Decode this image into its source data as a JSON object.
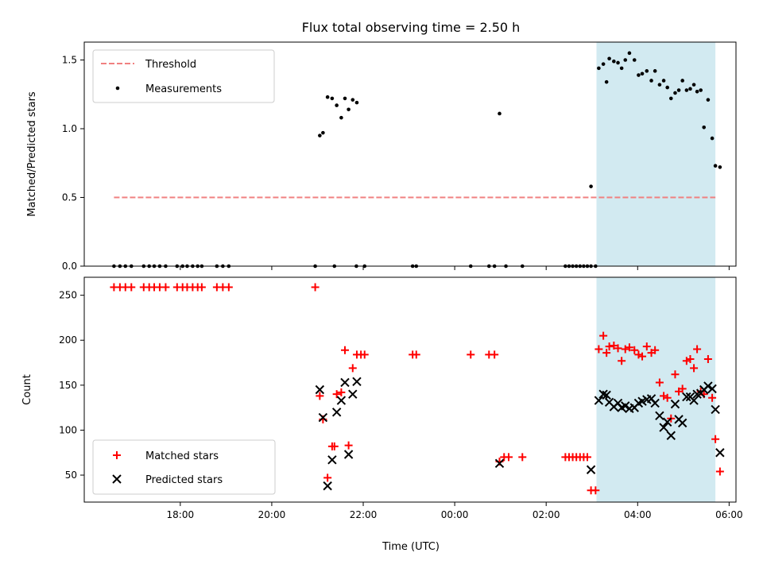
{
  "chart_data": {
    "title": "Flux total observing time = 2.50 h",
    "xlabel": "Time (UTC)",
    "xticks": [
      {
        "value": 18,
        "label": "18:00"
      },
      {
        "value": 20,
        "label": "20:00"
      },
      {
        "value": 22,
        "label": "22:00"
      },
      {
        "value": 24,
        "label": "00:00"
      },
      {
        "value": 26,
        "label": "02:00"
      },
      {
        "value": 28,
        "label": "04:00"
      },
      {
        "value": 30,
        "label": "06:00"
      }
    ],
    "x_unit_note": "",
    "shaded_region": {
      "x0": 27.1,
      "x1": 29.7,
      "color": "#add8e6"
    },
    "top": {
      "type": "scatter",
      "ylabel": "Matched/Predicted stars",
      "ylim": [
        0,
        1.63
      ],
      "yticks": [
        {
          "value": 0,
          "label": "0.0"
        },
        {
          "value": 0.5,
          "label": "0.5"
        },
        {
          "value": 1.0,
          "label": "1.0"
        },
        {
          "value": 1.5,
          "label": "1.5"
        }
      ],
      "threshold": {
        "name": "Threshold",
        "y": 0.5,
        "x0": 16.55,
        "x1": 29.7,
        "color": "#f08080"
      },
      "measurements": {
        "name": "Measurements",
        "color": "#000000",
        "points": [
          [
            16.55,
            0
          ],
          [
            16.68,
            0
          ],
          [
            16.8,
            0
          ],
          [
            16.93,
            0
          ],
          [
            17.2,
            0
          ],
          [
            17.32,
            0
          ],
          [
            17.43,
            0
          ],
          [
            17.55,
            0
          ],
          [
            17.68,
            0
          ],
          [
            17.93,
            0
          ],
          [
            18.05,
            0
          ],
          [
            18.15,
            0
          ],
          [
            18.27,
            0
          ],
          [
            18.38,
            0
          ],
          [
            18.47,
            0
          ],
          [
            18.8,
            0
          ],
          [
            18.93,
            0
          ],
          [
            19.06,
            0
          ],
          [
            20.95,
            0
          ],
          [
            21.37,
            0
          ],
          [
            21.85,
            0
          ],
          [
            22.03,
            0
          ],
          [
            23.08,
            0
          ],
          [
            23.16,
            0
          ],
          [
            24.35,
            0
          ],
          [
            24.75,
            0
          ],
          [
            24.87,
            0
          ],
          [
            25.12,
            0
          ],
          [
            25.48,
            0
          ],
          [
            26.42,
            0
          ],
          [
            26.5,
            0
          ],
          [
            26.58,
            0
          ],
          [
            26.66,
            0
          ],
          [
            26.74,
            0
          ],
          [
            26.82,
            0
          ],
          [
            26.9,
            0
          ],
          [
            26.98,
            0
          ],
          [
            27.08,
            0
          ],
          [
            21.05,
            0.95
          ],
          [
            21.12,
            0.97
          ],
          [
            21.22,
            1.23
          ],
          [
            21.32,
            1.22
          ],
          [
            21.42,
            1.17
          ],
          [
            21.52,
            1.08
          ],
          [
            21.6,
            1.22
          ],
          [
            21.68,
            1.14
          ],
          [
            21.77,
            1.21
          ],
          [
            21.86,
            1.19
          ],
          [
            24.98,
            1.11
          ],
          [
            26.98,
            0.58
          ],
          [
            27.15,
            1.44
          ],
          [
            27.25,
            1.47
          ],
          [
            27.32,
            1.34
          ],
          [
            27.38,
            1.51
          ],
          [
            27.48,
            1.49
          ],
          [
            27.57,
            1.48
          ],
          [
            27.65,
            1.44
          ],
          [
            27.73,
            1.5
          ],
          [
            27.82,
            1.55
          ],
          [
            27.93,
            1.5
          ],
          [
            28.02,
            1.39
          ],
          [
            28.1,
            1.4
          ],
          [
            28.2,
            1.42
          ],
          [
            28.3,
            1.35
          ],
          [
            28.38,
            1.42
          ],
          [
            28.48,
            1.32
          ],
          [
            28.57,
            1.35
          ],
          [
            28.65,
            1.3
          ],
          [
            28.73,
            1.22
          ],
          [
            28.82,
            1.26
          ],
          [
            28.9,
            1.28
          ],
          [
            28.98,
            1.35
          ],
          [
            29.07,
            1.28
          ],
          [
            29.15,
            1.29
          ],
          [
            29.23,
            1.32
          ],
          [
            29.3,
            1.27
          ],
          [
            29.38,
            1.28
          ],
          [
            29.45,
            1.01
          ],
          [
            29.54,
            1.21
          ],
          [
            29.63,
            0.93
          ],
          [
            29.7,
            0.73
          ],
          [
            29.8,
            0.72
          ]
        ]
      },
      "legend": [
        "Threshold",
        "Measurements"
      ]
    },
    "bottom": {
      "type": "scatter",
      "ylabel": "Count",
      "ylim": [
        20,
        270
      ],
      "yticks": [
        {
          "value": 50,
          "label": "50"
        },
        {
          "value": 100,
          "label": "100"
        },
        {
          "value": 150,
          "label": "150"
        },
        {
          "value": 200,
          "label": "200"
        },
        {
          "value": 250,
          "label": "250"
        }
      ],
      "series": [
        {
          "name": "Matched stars",
          "marker": "+",
          "color": "#ff0000",
          "points": [
            [
              16.55,
              259
            ],
            [
              16.68,
              259
            ],
            [
              16.8,
              259
            ],
            [
              16.93,
              259
            ],
            [
              17.2,
              259
            ],
            [
              17.32,
              259
            ],
            [
              17.43,
              259
            ],
            [
              17.55,
              259
            ],
            [
              17.68,
              259
            ],
            [
              17.93,
              259
            ],
            [
              18.05,
              259
            ],
            [
              18.15,
              259
            ],
            [
              18.27,
              259
            ],
            [
              18.38,
              259
            ],
            [
              18.47,
              259
            ],
            [
              18.8,
              259
            ],
            [
              18.93,
              259
            ],
            [
              19.06,
              259
            ],
            [
              20.95,
              259
            ],
            [
              21.05,
              138
            ],
            [
              21.12,
              112
            ],
            [
              21.22,
              47
            ],
            [
              21.32,
              82
            ],
            [
              21.37,
              82
            ],
            [
              21.42,
              140
            ],
            [
              21.52,
              142
            ],
            [
              21.6,
              189
            ],
            [
              21.68,
              83
            ],
            [
              21.77,
              169
            ],
            [
              21.86,
              184
            ],
            [
              21.95,
              184
            ],
            [
              22.03,
              184
            ],
            [
              23.08,
              184
            ],
            [
              23.16,
              184
            ],
            [
              24.35,
              184
            ],
            [
              24.75,
              184
            ],
            [
              24.87,
              184
            ],
            [
              24.98,
              65
            ],
            [
              25.08,
              70
            ],
            [
              25.18,
              70
            ],
            [
              25.48,
              70
            ],
            [
              26.42,
              70
            ],
            [
              26.5,
              70
            ],
            [
              26.58,
              70
            ],
            [
              26.66,
              70
            ],
            [
              26.74,
              70
            ],
            [
              26.82,
              70
            ],
            [
              26.9,
              70
            ],
            [
              26.98,
              33
            ],
            [
              27.08,
              33
            ],
            [
              27.15,
              190
            ],
            [
              27.25,
              205
            ],
            [
              27.32,
              186
            ],
            [
              27.38,
              193
            ],
            [
              27.48,
              194
            ],
            [
              27.57,
              191
            ],
            [
              27.65,
              177
            ],
            [
              27.73,
              190
            ],
            [
              27.82,
              192
            ],
            [
              27.93,
              189
            ],
            [
              28.02,
              184
            ],
            [
              28.1,
              182
            ],
            [
              28.2,
              193
            ],
            [
              28.3,
              186
            ],
            [
              28.38,
              189
            ],
            [
              28.48,
              153
            ],
            [
              28.57,
              138
            ],
            [
              28.65,
              136
            ],
            [
              28.73,
              113
            ],
            [
              28.82,
              162
            ],
            [
              28.9,
              143
            ],
            [
              28.98,
              146
            ],
            [
              29.07,
              177
            ],
            [
              29.15,
              179
            ],
            [
              29.23,
              169
            ],
            [
              29.3,
              190
            ],
            [
              29.38,
              143
            ],
            [
              29.45,
              140
            ],
            [
              29.54,
              179
            ],
            [
              29.63,
              136
            ],
            [
              29.7,
              90
            ],
            [
              29.8,
              54
            ]
          ]
        },
        {
          "name": "Predicted stars",
          "marker": "x",
          "color": "#000000",
          "points": [
            [
              21.05,
              145
            ],
            [
              21.12,
              114
            ],
            [
              21.22,
              38
            ],
            [
              21.32,
              67
            ],
            [
              21.42,
              120
            ],
            [
              21.52,
              133
            ],
            [
              21.6,
              153
            ],
            [
              21.68,
              73
            ],
            [
              21.77,
              140
            ],
            [
              21.86,
              154
            ],
            [
              24.98,
              63
            ],
            [
              26.98,
              56
            ],
            [
              27.15,
              133
            ],
            [
              27.25,
              140
            ],
            [
              27.32,
              139
            ],
            [
              27.38,
              131
            ],
            [
              27.48,
              126
            ],
            [
              27.57,
              130
            ],
            [
              27.65,
              125
            ],
            [
              27.73,
              127
            ],
            [
              27.82,
              124
            ],
            [
              27.93,
              125
            ],
            [
              28.02,
              130
            ],
            [
              28.1,
              132
            ],
            [
              28.2,
              134
            ],
            [
              28.3,
              135
            ],
            [
              28.38,
              130
            ],
            [
              28.48,
              116
            ],
            [
              28.57,
              103
            ],
            [
              28.65,
              109
            ],
            [
              28.73,
              94
            ],
            [
              28.82,
              129
            ],
            [
              28.9,
              112
            ],
            [
              28.98,
              108
            ],
            [
              29.07,
              137
            ],
            [
              29.15,
              137
            ],
            [
              29.23,
              133
            ],
            [
              29.3,
              140
            ],
            [
              29.38,
              141
            ],
            [
              29.45,
              145
            ],
            [
              29.54,
              149
            ],
            [
              29.63,
              146
            ],
            [
              29.7,
              123
            ],
            [
              29.8,
              75
            ]
          ]
        }
      ],
      "legend": [
        "Matched stars",
        "Predicted stars"
      ]
    }
  }
}
